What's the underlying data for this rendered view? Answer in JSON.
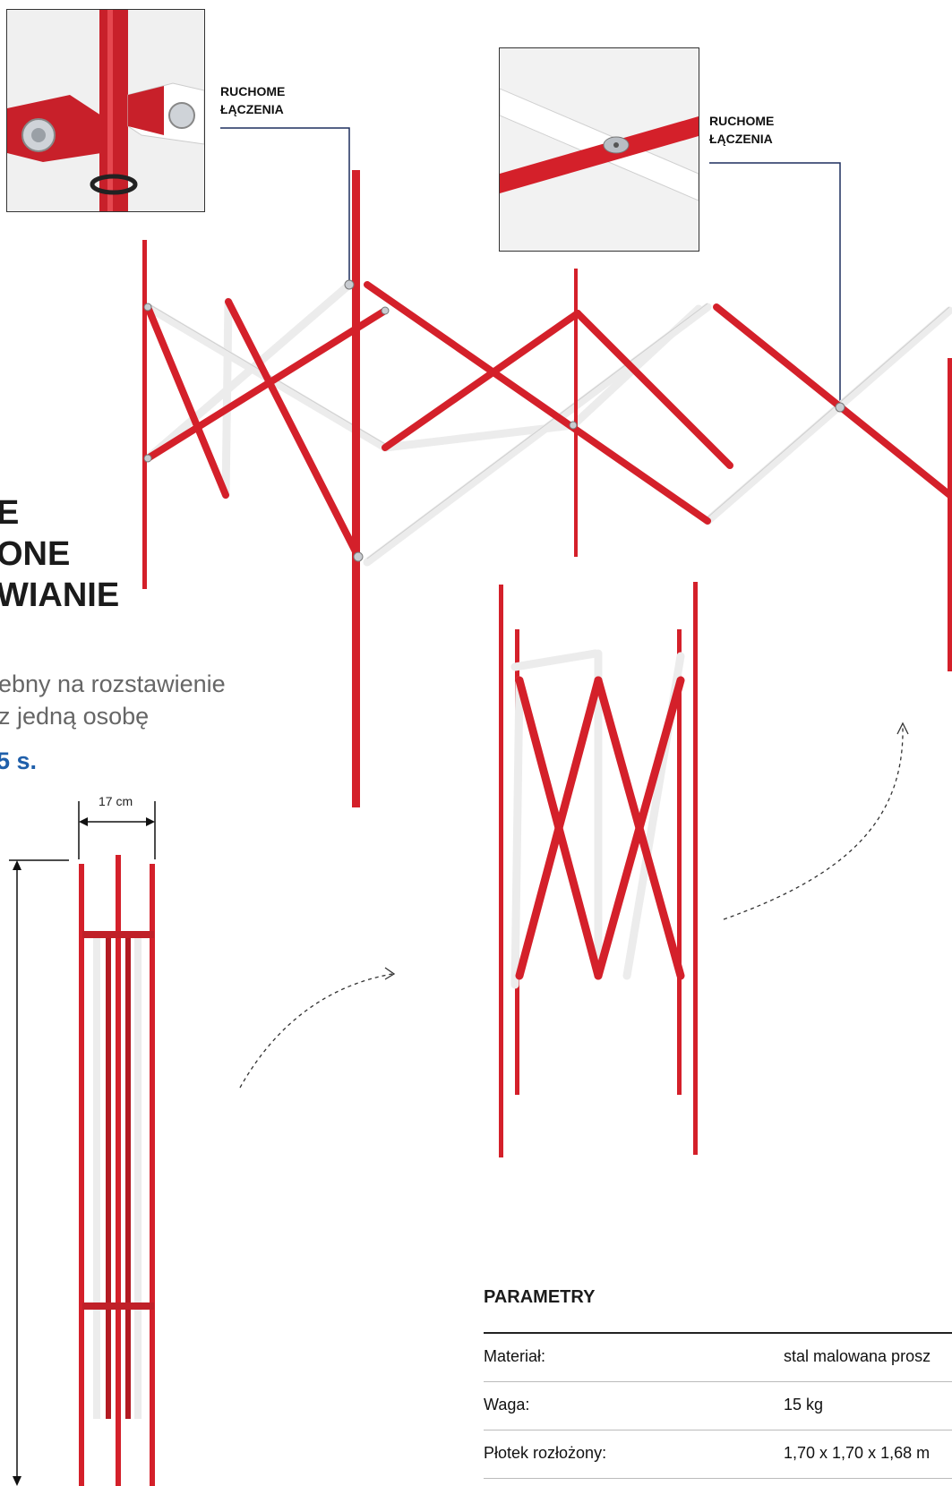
{
  "callouts": [
    {
      "line1": "RUCHOME",
      "line2": "ŁĄCZENIA"
    },
    {
      "line1": "RUCHOME",
      "line2": "ŁĄCZENIA"
    }
  ],
  "heading": {
    "line1": "E",
    "line2": "ONE",
    "line3": "WIANIE"
  },
  "description": {
    "line1": "ebny na rozstawienie",
    "line2": "z jedną osobę",
    "time": "5 s."
  },
  "dimensions": {
    "width": "17 cm"
  },
  "parameters": {
    "title": "PARAMETRY",
    "rows": [
      {
        "label": "Materiał:",
        "value": "stal malowana prosz"
      },
      {
        "label": "Waga:",
        "value": "15 kg"
      },
      {
        "label": "Płotek rozłożony:",
        "value": "1,70 x 1,70 x 1,68 m"
      }
    ]
  },
  "colors": {
    "red": "#d4202a",
    "white_bar": "#eeeeee",
    "accent_blue": "#1f5faa",
    "callout_line": "#1d2f5e"
  }
}
